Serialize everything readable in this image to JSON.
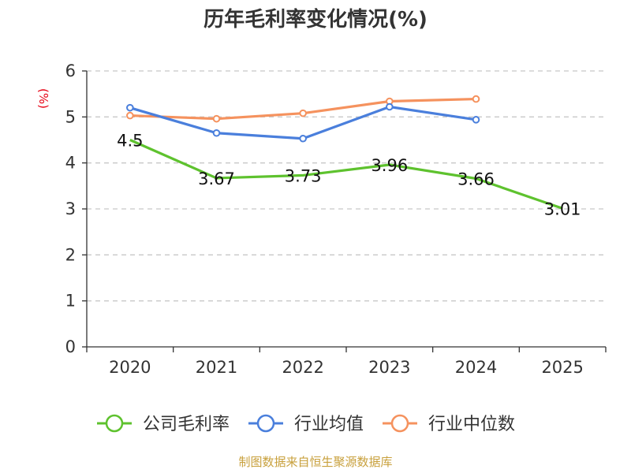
{
  "chart_data": {
    "type": "line",
    "title": "历年毛利率变化情况(%)",
    "ylabel": "(%)",
    "xlabel": "",
    "categories": [
      "2020",
      "2021",
      "2022",
      "2023",
      "2024",
      "2025"
    ],
    "ylim": [
      0,
      6
    ],
    "yticks": [
      "0",
      "1",
      "2",
      "3",
      "4",
      "5",
      "6"
    ],
    "grid": true,
    "legend_position": "bottom",
    "series": [
      {
        "name": "公司毛利率",
        "color": "#5ec22e",
        "values": [
          4.5,
          3.67,
          3.73,
          3.96,
          3.66,
          3.01
        ],
        "labels": [
          "4.5",
          "3.67",
          "3.73",
          "3.96",
          "3.66",
          "3.01"
        ]
      },
      {
        "name": "行业均值",
        "color": "#4a7fdc",
        "values": [
          5.2,
          4.65,
          4.53,
          5.22,
          4.94,
          null
        ]
      },
      {
        "name": "行业中位数",
        "color": "#f5925e",
        "values": [
          5.03,
          4.96,
          5.08,
          5.34,
          5.39,
          null
        ]
      }
    ]
  },
  "source": "制图数据来自恒生聚源数据库"
}
